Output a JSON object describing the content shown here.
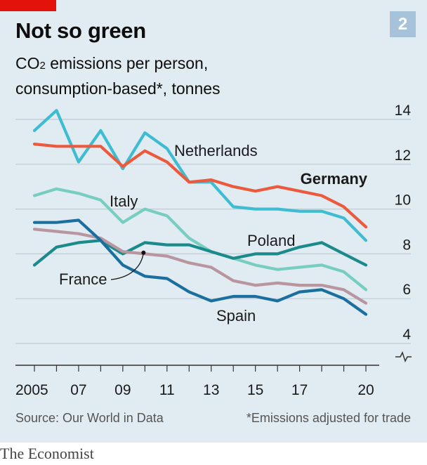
{
  "badge": "2",
  "title": "Not so green",
  "subtitle_line1_pre": "CO",
  "subtitle_line1_sub": "2",
  "subtitle_line1_post": " emissions per person,",
  "subtitle_line2": "consumption-based*, tonnes",
  "source": "Source: Our World in Data",
  "note": "*Emissions adjusted for trade",
  "brand": "The Economist",
  "colors": {
    "background": "#e1ebf2",
    "gridline": "#bdcbd6",
    "axis": "#333333",
    "Netherlands": "#3ebcd2",
    "Germany": "#eb5a3c",
    "Italy": "#78cdc1",
    "Poland": "#1a8a8a",
    "France": "#b8959f",
    "Spain": "#1a6f9f"
  },
  "chart_data": {
    "type": "line",
    "x": [
      2005,
      2006,
      2007,
      2008,
      2009,
      2010,
      2011,
      2012,
      2013,
      2014,
      2015,
      2016,
      2017,
      2018,
      2019,
      2020
    ],
    "x_tick_labels": [
      {
        "x": 2005,
        "label": "2005"
      },
      {
        "x": 2007,
        "label": "07"
      },
      {
        "x": 2009,
        "label": "09"
      },
      {
        "x": 2011,
        "label": "11"
      },
      {
        "x": 2013,
        "label": "13"
      },
      {
        "x": 2015,
        "label": "15"
      },
      {
        "x": 2017,
        "label": "17"
      },
      {
        "x": 2020,
        "label": "20"
      }
    ],
    "y_ticks": [
      4,
      6,
      8,
      10,
      12,
      14
    ],
    "ylim": [
      4,
      14
    ],
    "y_axis_break": true,
    "grid": true,
    "series": [
      {
        "name": "Netherlands",
        "values": [
          13.5,
          14.4,
          12.1,
          13.5,
          11.8,
          13.4,
          12.7,
          11.2,
          11.2,
          10.1,
          10.0,
          10.0,
          9.9,
          9.9,
          9.6,
          8.6
        ]
      },
      {
        "name": "Germany",
        "bold": true,
        "values": [
          12.9,
          12.8,
          12.8,
          12.8,
          11.9,
          12.6,
          12.1,
          11.2,
          11.3,
          11.0,
          10.8,
          11.0,
          10.8,
          10.6,
          10.1,
          9.2
        ]
      },
      {
        "name": "Italy",
        "values": [
          10.6,
          10.9,
          10.7,
          10.4,
          9.4,
          10.0,
          9.7,
          8.7,
          8.1,
          7.8,
          7.5,
          7.3,
          7.4,
          7.5,
          7.2,
          6.4
        ]
      },
      {
        "name": "Poland",
        "values": [
          7.5,
          8.3,
          8.5,
          8.6,
          8.0,
          8.5,
          8.4,
          8.4,
          8.1,
          7.8,
          8.0,
          8.0,
          8.3,
          8.5,
          8.0,
          7.5
        ]
      },
      {
        "name": "France",
        "values": [
          9.1,
          9.0,
          8.9,
          8.7,
          8.1,
          8.0,
          7.9,
          7.6,
          7.4,
          6.8,
          6.6,
          6.7,
          6.6,
          6.6,
          6.4,
          5.8
        ]
      },
      {
        "name": "Spain",
        "values": [
          9.4,
          9.4,
          9.5,
          8.6,
          7.5,
          7.0,
          6.9,
          6.3,
          5.9,
          6.1,
          6.1,
          5.9,
          6.3,
          6.4,
          6.0,
          5.3
        ]
      }
    ],
    "annotations": [
      {
        "text": "Netherlands",
        "series": "Netherlands"
      },
      {
        "text": "Germany",
        "series": "Germany"
      },
      {
        "text": "Italy",
        "series": "Italy"
      },
      {
        "text": "Poland",
        "series": "Poland"
      },
      {
        "text": "France",
        "series": "France"
      },
      {
        "text": "Spain",
        "series": "Spain"
      }
    ]
  }
}
